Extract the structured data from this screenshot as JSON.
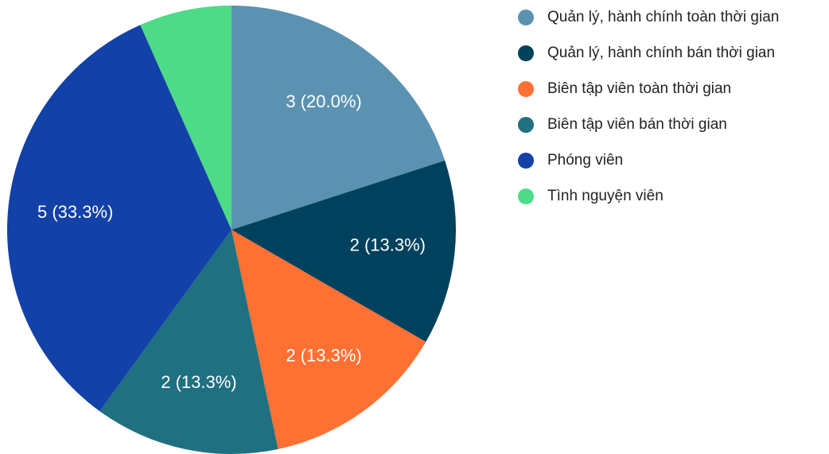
{
  "chart_data": {
    "type": "pie",
    "categories": [
      "Quản lý, hành chính toàn thời gian",
      "Quản lý, hành chính bán thời gian",
      "Biên tập viên toàn thời gian",
      "Biên tập viên bán thời gian",
      "Phóng viên",
      "Tình nguyện viên"
    ],
    "values": [
      3,
      2,
      2,
      2,
      5,
      1
    ],
    "value_labels": [
      "3 (20.0%)",
      "2 (13.3%)",
      "2 (13.3%)",
      "2 (13.3%)",
      "5 (33.3%)",
      null
    ],
    "colors": [
      "#5b92b1",
      "#00425e",
      "#ff7033",
      "#1f7080",
      "#1241a8",
      "#4ddb87"
    ],
    "legend": "right"
  }
}
